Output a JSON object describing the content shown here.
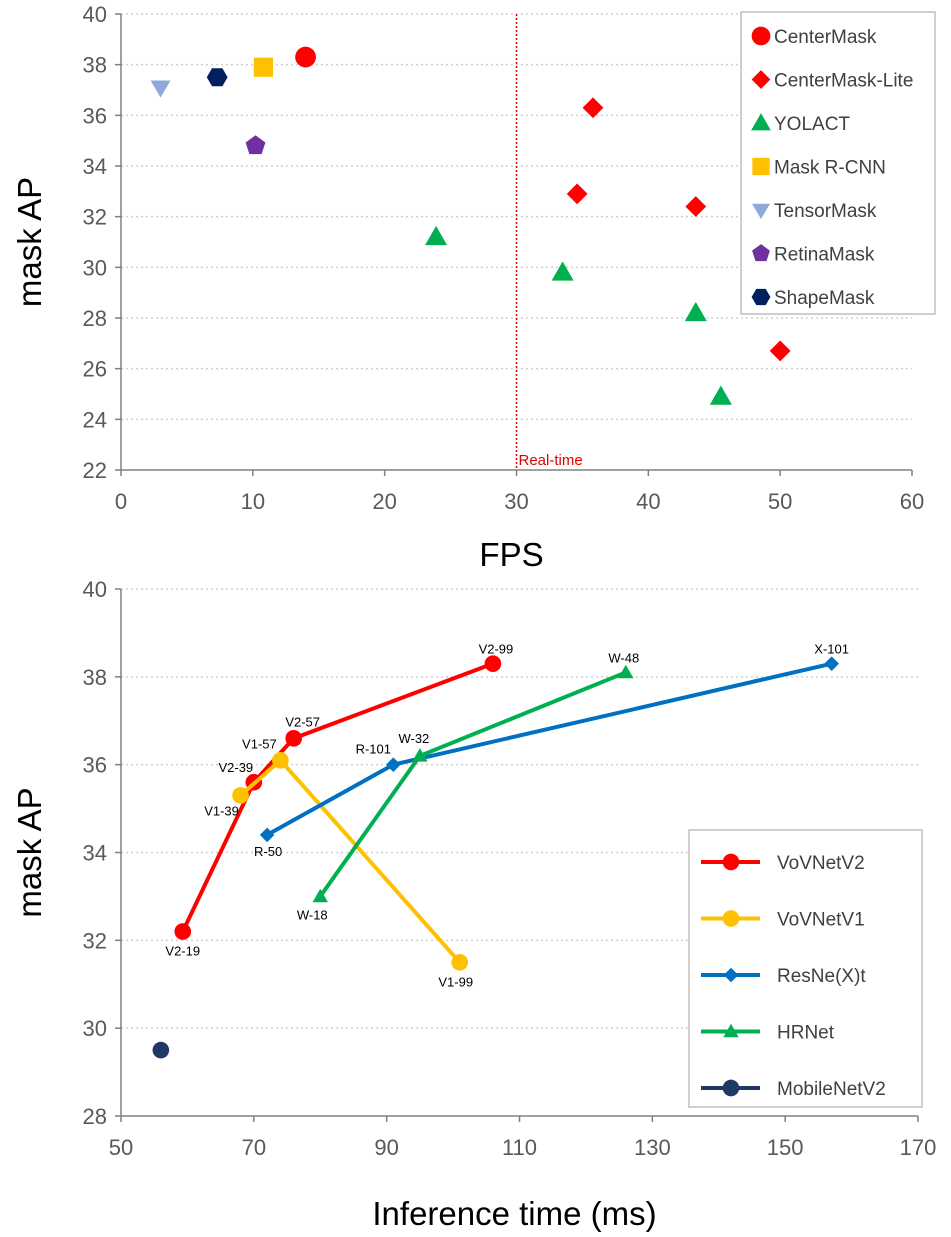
{
  "colors": {
    "red": "#ff0000",
    "yellow": "#ffc000",
    "light_blue": "#8eaadb",
    "purple": "#7030a0",
    "navy": "#002060",
    "green": "#00b050",
    "mid_blue": "#0070c0",
    "dark_blue": "#203864",
    "realtime": "#e00000"
  },
  "chart_data": [
    {
      "type": "scatter",
      "title": "",
      "xlabel": "FPS",
      "ylabel": "mask AP",
      "xlim": [
        0,
        60
      ],
      "ylim": [
        22,
        40
      ],
      "xticks": [
        "0",
        "10",
        "20",
        "30",
        "40",
        "50",
        "60"
      ],
      "yticks": [
        "22",
        "24",
        "26",
        "28",
        "30",
        "32",
        "34",
        "36",
        "38",
        "40"
      ],
      "grid": "horizontal dotted",
      "legend_position": "top-right",
      "reference_line": {
        "x": 30,
        "label": "Real-time"
      },
      "series": [
        {
          "name": "CenterMask",
          "marker": "circle",
          "color": "red",
          "points": [
            {
              "x": 14.0,
              "y": 38.3
            }
          ]
        },
        {
          "name": "CenterMask-Lite",
          "marker": "diamond",
          "color": "red",
          "points": [
            {
              "x": 35.8,
              "y": 36.3
            },
            {
              "x": 34.6,
              "y": 32.9
            },
            {
              "x": 43.6,
              "y": 32.4
            },
            {
              "x": 50.0,
              "y": 26.7
            }
          ]
        },
        {
          "name": "YOLACT",
          "marker": "triangle",
          "color": "green",
          "points": [
            {
              "x": 23.9,
              "y": 31.2
            },
            {
              "x": 33.5,
              "y": 29.8
            },
            {
              "x": 43.6,
              "y": 28.2
            },
            {
              "x": 45.5,
              "y": 24.9
            }
          ]
        },
        {
          "name": "Mask R-CNN",
          "marker": "square",
          "color": "yellow",
          "points": [
            {
              "x": 10.8,
              "y": 37.9
            }
          ]
        },
        {
          "name": "TensorMask",
          "marker": "triangle-down",
          "color": "light_blue",
          "points": [
            {
              "x": 3.0,
              "y": 37.1
            }
          ]
        },
        {
          "name": "RetinaMask",
          "marker": "pentagon",
          "color": "purple",
          "points": [
            {
              "x": 10.2,
              "y": 34.8
            }
          ]
        },
        {
          "name": "ShapeMask",
          "marker": "hexagon",
          "color": "navy",
          "points": [
            {
              "x": 7.3,
              "y": 37.5
            }
          ]
        }
      ]
    },
    {
      "type": "line",
      "title": "",
      "xlabel": "Inference time (ms)",
      "ylabel": "mask AP",
      "xlim": [
        50,
        170
      ],
      "ylim": [
        28,
        40
      ],
      "xticks": [
        "50",
        "70",
        "90",
        "110",
        "130",
        "150",
        "170"
      ],
      "yticks": [
        "28",
        "30",
        "32",
        "34",
        "36",
        "38",
        "40"
      ],
      "grid": "horizontal dotted",
      "legend_position": "bottom-right",
      "series": [
        {
          "name": "VoVNetV2",
          "marker": "circle",
          "color": "red",
          "points": [
            {
              "x": 59.3,
              "y": 32.2,
              "label": "V2-19"
            },
            {
              "x": 70.0,
              "y": 35.6,
              "label": "V2-39"
            },
            {
              "x": 76.0,
              "y": 36.6,
              "label": "V2-57"
            },
            {
              "x": 106.0,
              "y": 38.3,
              "label": "V2-99"
            }
          ]
        },
        {
          "name": "VoVNetV1",
          "marker": "circle",
          "color": "yellow",
          "points": [
            {
              "x": 68.0,
              "y": 35.3,
              "label": "V1-39"
            },
            {
              "x": 74.0,
              "y": 36.1,
              "label": "V1-57"
            },
            {
              "x": 101.0,
              "y": 31.5,
              "label": "V1-99"
            }
          ]
        },
        {
          "name": "ResNe(X)t",
          "marker": "diamond",
          "color": "mid_blue",
          "points": [
            {
              "x": 72.0,
              "y": 34.4,
              "label": "R-50"
            },
            {
              "x": 91.0,
              "y": 36.0,
              "label": "R-101"
            },
            {
              "x": 157.0,
              "y": 38.3,
              "label": "X-101"
            }
          ]
        },
        {
          "name": "HRNet",
          "marker": "triangle",
          "color": "green",
          "points": [
            {
              "x": 80.0,
              "y": 33.0,
              "label": "W-18"
            },
            {
              "x": 95.0,
              "y": 36.2,
              "label": "W-32"
            },
            {
              "x": 126.0,
              "y": 38.1,
              "label": "W-48"
            }
          ]
        },
        {
          "name": "MobileNetV2",
          "marker": "circle",
          "color": "dark_blue",
          "points": [
            {
              "x": 56.0,
              "y": 29.5,
              "label": ""
            }
          ]
        }
      ]
    }
  ]
}
